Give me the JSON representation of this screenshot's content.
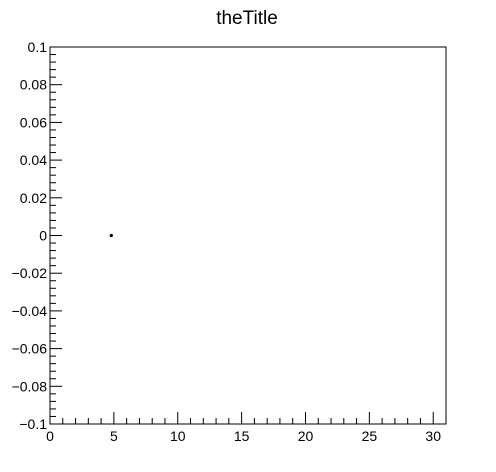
{
  "chart_data": {
    "type": "scatter",
    "title": "theTitle",
    "xlabel": "",
    "ylabel": "",
    "xlim": [
      0,
      31
    ],
    "ylim": [
      -0.1,
      0.1
    ],
    "grid": false,
    "legend": "none",
    "x_ticks": [
      0,
      5,
      10,
      15,
      20,
      25,
      30
    ],
    "x_tick_labels": [
      "0",
      "5",
      "10",
      "15",
      "20",
      "25",
      "30"
    ],
    "y_ticks": [
      0.1,
      0.08,
      0.06,
      0.04,
      0.02,
      0,
      -0.02,
      -0.04,
      -0.06,
      -0.08,
      -0.1
    ],
    "y_tick_labels": [
      "0.1",
      "0.08",
      "0.06",
      "0.04",
      "0.02",
      "0",
      "−0.02",
      "−0.04",
      "−0.06",
      "−0.08",
      "−0.1"
    ],
    "series": [
      {
        "points": [
          {
            "x": 4.8,
            "y": 0
          }
        ],
        "color": "#000000"
      }
    ]
  }
}
